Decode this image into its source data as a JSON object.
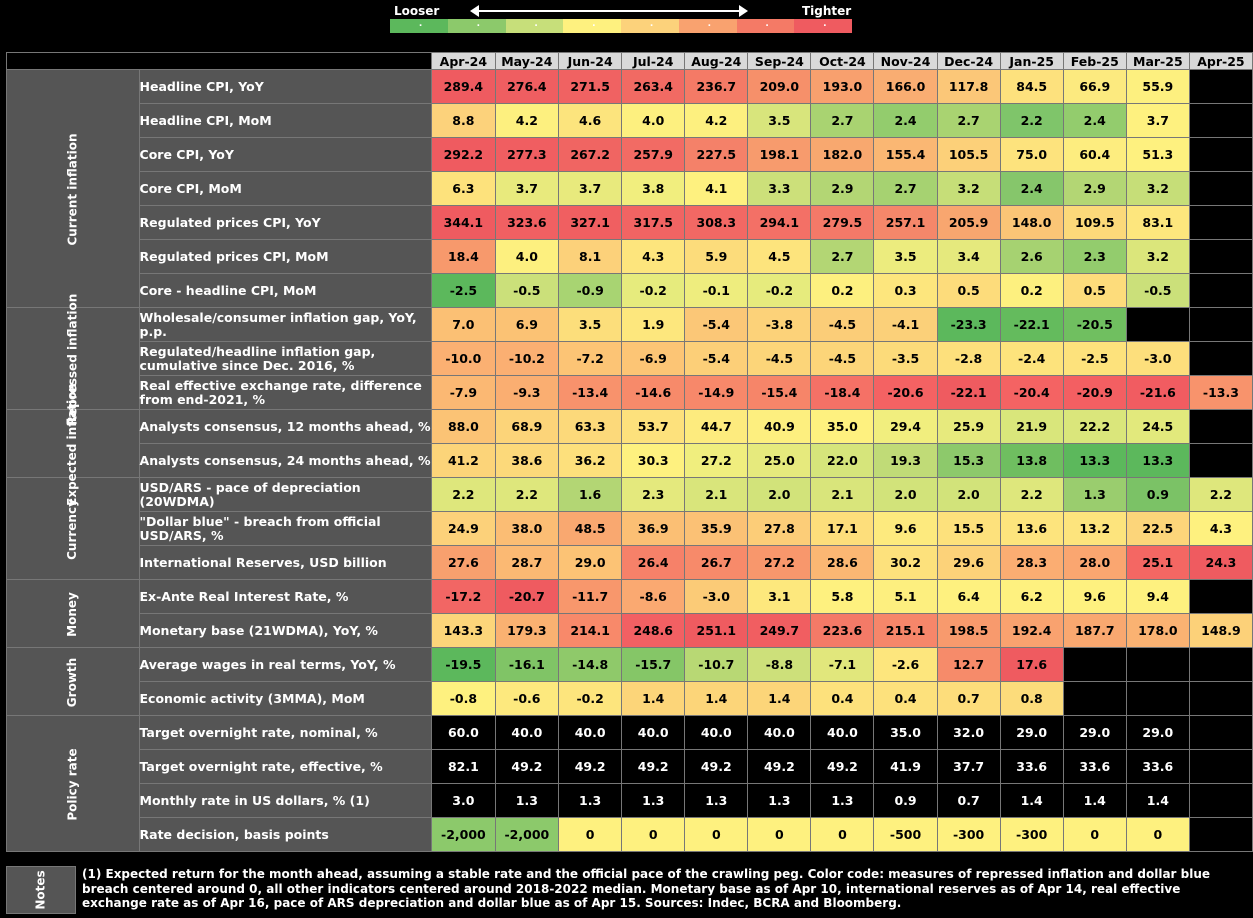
{
  "legend": {
    "left_label": "Looser",
    "right_label": "Tighter",
    "colors": [
      "#5cb85c",
      "#8cc96b",
      "#c7df7a",
      "#fef17f",
      "#fcd27b",
      "#f9a26f",
      "#f47a66",
      "#ef5b60"
    ]
  },
  "months": [
    "Apr-24",
    "May-24",
    "Jun-24",
    "Jul-24",
    "Aug-24",
    "Sep-24",
    "Oct-24",
    "Nov-24",
    "Dec-24",
    "Jan-25",
    "Feb-25",
    "Mar-25",
    "Apr-25"
  ],
  "groups": [
    {
      "name": "Current inflation",
      "rows": [
        {
          "label": "Headline CPI, YoY",
          "values": [
            "289.4",
            "276.4",
            "271.5",
            "263.4",
            "236.7",
            "209.0",
            "193.0",
            "166.0",
            "117.8",
            "84.5",
            "66.9",
            "55.9",
            ""
          ],
          "colors": [
            "#ef5b60",
            "#ef5e61",
            "#f06262",
            "#f16a63",
            "#f47a66",
            "#f6906a",
            "#f8a06e",
            "#f9ad72",
            "#fbc778",
            "#fde17d",
            "#fcea7f",
            "#fdf07f",
            "#000000"
          ]
        },
        {
          "label": "Headline CPI, MoM",
          "values": [
            "8.8",
            "4.2",
            "4.6",
            "4.0",
            "4.2",
            "3.5",
            "2.7",
            "2.4",
            "2.7",
            "2.2",
            "2.4",
            "3.7",
            ""
          ],
          "colors": [
            "#fcd27b",
            "#fdf07f",
            "#fce47d",
            "#fdf07f",
            "#fdf07f",
            "#d8e57c",
            "#a9d371",
            "#93cc6d",
            "#a9d371",
            "#7fc56a",
            "#93cc6d",
            "#fef17f",
            "#000000"
          ]
        },
        {
          "label": "Core CPI, YoY",
          "values": [
            "292.2",
            "277.3",
            "267.2",
            "257.9",
            "227.5",
            "198.1",
            "182.0",
            "155.4",
            "105.5",
            "75.0",
            "60.4",
            "51.3",
            ""
          ],
          "colors": [
            "#ef5b60",
            "#f05e61",
            "#f06562",
            "#f26b64",
            "#f48169",
            "#f79b6d",
            "#f8a86f",
            "#fab773",
            "#fcd079",
            "#fde37d",
            "#fded7f",
            "#fef17f",
            "#000000"
          ]
        },
        {
          "label": "Core CPI, MoM",
          "values": [
            "6.3",
            "3.7",
            "3.7",
            "3.8",
            "4.1",
            "3.3",
            "2.9",
            "2.7",
            "3.2",
            "2.4",
            "2.9",
            "3.2",
            ""
          ],
          "colors": [
            "#fde27c",
            "#e8ea7d",
            "#e8ea7d",
            "#f1ee7e",
            "#fef17f",
            "#cce07a",
            "#b3d674",
            "#a6d271",
            "#c6de78",
            "#86c66b",
            "#b3d674",
            "#c6de78",
            "#000000"
          ]
        },
        {
          "label": "Regulated prices CPI, YoY",
          "values": [
            "344.1",
            "323.6",
            "327.1",
            "317.5",
            "308.3",
            "294.1",
            "279.5",
            "257.1",
            "205.9",
            "148.0",
            "109.5",
            "83.1",
            ""
          ],
          "colors": [
            "#ef5b60",
            "#f06062",
            "#f05f61",
            "#f16463",
            "#f26864",
            "#f37066",
            "#f47968",
            "#f5876a",
            "#f8a66f",
            "#fbc576",
            "#fcd97a",
            "#fde67d",
            "#000000"
          ]
        },
        {
          "label": "Regulated prices CPI, MoM",
          "values": [
            "18.4",
            "4.0",
            "8.1",
            "4.3",
            "5.9",
            "4.5",
            "2.7",
            "3.5",
            "3.4",
            "2.6",
            "2.3",
            "3.2",
            ""
          ],
          "colors": [
            "#f7996c",
            "#fdf07f",
            "#fcd17a",
            "#fde57d",
            "#fcdc7b",
            "#fde47d",
            "#b3d674",
            "#ecec7e",
            "#e5e97d",
            "#a6d271",
            "#93cc6d",
            "#dbe67b",
            "#000000"
          ]
        },
        {
          "label": "Core - headline CPI, MoM",
          "values": [
            "-2.5",
            "-0.5",
            "-0.9",
            "-0.2",
            "-0.1",
            "-0.2",
            "0.2",
            "0.3",
            "0.5",
            "0.2",
            "0.5",
            "-0.5",
            ""
          ],
          "colors": [
            "#5cb85c",
            "#cbe07a",
            "#a8d472",
            "#e6eb7d",
            "#eeed7e",
            "#e6eb7d",
            "#fdf07f",
            "#fde67d",
            "#fddc7b",
            "#fdf07f",
            "#fddc7b",
            "#cbe07a",
            "#000000"
          ]
        }
      ]
    },
    {
      "name": "Repressed inflation",
      "rows": [
        {
          "label": "Wholesale/consumer inflation gap, YoY, p.p.",
          "values": [
            "7.0",
            "6.9",
            "3.5",
            "1.9",
            "-5.4",
            "-3.8",
            "-4.5",
            "-4.1",
            "-23.3",
            "-22.1",
            "-20.5",
            "",
            ""
          ],
          "colors": [
            "#fbc074",
            "#fbc274",
            "#fcde7b",
            "#fde77d",
            "#fbc777",
            "#fcd279",
            "#fbcd78",
            "#fbd079",
            "#5cb85c",
            "#64bb5d",
            "#70bf60",
            "#000000",
            "#000000"
          ]
        },
        {
          "label": "Regulated/headline inflation gap, cumulative since Dec. 2016, %",
          "values": [
            "-10.0",
            "-10.2",
            "-7.2",
            "-6.9",
            "-5.4",
            "-4.5",
            "-4.5",
            "-3.5",
            "-2.8",
            "-2.4",
            "-2.5",
            "-3.0",
            ""
          ],
          "colors": [
            "#fbb072",
            "#fbaf72",
            "#fcc475",
            "#fcc575",
            "#fccf78",
            "#fcd579",
            "#fcd579",
            "#fcdb7a",
            "#fde07c",
            "#fde37c",
            "#fde27c",
            "#fddf7c",
            "#000000"
          ]
        },
        {
          "label": "Real effective exchange rate, difference from end-2021, %",
          "values": [
            "-7.9",
            "-9.3",
            "-13.4",
            "-14.6",
            "-14.9",
            "-15.4",
            "-18.4",
            "-20.6",
            "-22.1",
            "-20.4",
            "-20.9",
            "-21.6",
            "-13.3"
          ],
          "colors": [
            "#fbb873",
            "#faae71",
            "#f8926c",
            "#f78a6a",
            "#f7886a",
            "#f68569",
            "#f57166",
            "#f46263",
            "#ef5b60",
            "#f46363",
            "#f35f62",
            "#f15c61",
            "#f8936c"
          ]
        }
      ]
    },
    {
      "name": "Expected inflation",
      "rows": [
        {
          "label": "Analysts consensus, 12 months ahead, %",
          "values": [
            "88.0",
            "68.9",
            "63.3",
            "53.7",
            "44.7",
            "40.9",
            "35.0",
            "29.4",
            "25.9",
            "21.9",
            "22.2",
            "24.5",
            ""
          ],
          "colors": [
            "#fbc375",
            "#fcd479",
            "#fcd97a",
            "#fde17c",
            "#fdeb7e",
            "#fdef7f",
            "#fef17f",
            "#f1ee7e",
            "#e7ea7d",
            "#d9e67b",
            "#dae67b",
            "#e2e97c",
            "#000000"
          ]
        },
        {
          "label": "Analysts consensus, 24 months ahead, %",
          "values": [
            "41.2",
            "38.6",
            "36.2",
            "30.3",
            "27.2",
            "25.0",
            "22.0",
            "19.3",
            "15.3",
            "13.8",
            "13.3",
            "13.3",
            ""
          ],
          "colors": [
            "#fcd479",
            "#fcd97a",
            "#fde07c",
            "#fef17f",
            "#f0ee7e",
            "#e6ea7d",
            "#d6e57b",
            "#c0db77",
            "#8dc96b",
            "#6fbe60",
            "#5cb85c",
            "#5cb85c",
            "#000000"
          ]
        }
      ]
    },
    {
      "name": "Currency",
      "rows": [
        {
          "label": "USD/ARS - pace of depreciation (20WDMA)",
          "values": [
            "2.2",
            "2.2",
            "1.6",
            "2.3",
            "2.1",
            "2.0",
            "2.1",
            "2.0",
            "2.0",
            "2.2",
            "1.3",
            "0.9",
            "2.2"
          ],
          "colors": [
            "#dee77c",
            "#dee77c",
            "#b3d674",
            "#e4e97d",
            "#d9e57b",
            "#d2e37a",
            "#d9e57b",
            "#d2e37a",
            "#d2e37a",
            "#dee77c",
            "#9acd6e",
            "#7bc266",
            "#dee77c"
          ]
        },
        {
          "label": "\"Dollar blue\" - breach from official USD/ARS, %",
          "values": [
            "24.9",
            "38.0",
            "48.5",
            "36.9",
            "35.9",
            "27.8",
            "17.1",
            "9.6",
            "15.5",
            "13.6",
            "13.2",
            "22.5",
            "4.3"
          ],
          "colors": [
            "#fcd17a",
            "#fbbd74",
            "#f9a870",
            "#fbbf74",
            "#fbc175",
            "#fccd78",
            "#fdde7b",
            "#fdea7e",
            "#fde17c",
            "#fde47d",
            "#fde47d",
            "#fcd57a",
            "#fef17f"
          ]
        },
        {
          "label": "International Reserves, USD billion",
          "values": [
            "27.6",
            "28.7",
            "29.0",
            "26.4",
            "26.7",
            "27.2",
            "28.6",
            "30.2",
            "29.6",
            "28.3",
            "28.0",
            "25.1",
            "24.3"
          ],
          "colors": [
            "#f8a06e",
            "#fbb973",
            "#fcc375",
            "#f68169",
            "#f78a6a",
            "#f8976c",
            "#fbb773",
            "#fde17c",
            "#fcd279",
            "#fbad72",
            "#faa670",
            "#f46763",
            "#ef5b60"
          ]
        }
      ]
    },
    {
      "name": "Money",
      "rows": [
        {
          "label": "Ex-Ante Real Interest Rate, %",
          "values": [
            "-17.2",
            "-20.7",
            "-11.7",
            "-8.6",
            "-3.0",
            "3.1",
            "5.8",
            "5.1",
            "6.4",
            "6.2",
            "9.6",
            "9.4",
            ""
          ],
          "colors": [
            "#f26664",
            "#ef5b60",
            "#f8976c",
            "#faa971",
            "#fbcb77",
            "#fde87d",
            "#fef17f",
            "#fdef7f",
            "#fef17f",
            "#fef17f",
            "#fef17f",
            "#fef17f",
            "#000000"
          ]
        },
        {
          "label": "Monetary base (21WDMA), YoY, %",
          "values": [
            "143.3",
            "179.3",
            "214.1",
            "248.6",
            "251.1",
            "249.7",
            "223.6",
            "215.1",
            "198.5",
            "192.4",
            "187.7",
            "178.0",
            "148.9"
          ],
          "colors": [
            "#fcd57a",
            "#fab171",
            "#f8896a",
            "#f26063",
            "#ef5b60",
            "#f15e61",
            "#f47a67",
            "#f6866a",
            "#f89a6d",
            "#f9a26f",
            "#f9a870",
            "#fab272",
            "#fcd179"
          ]
        }
      ]
    },
    {
      "name": "Growth",
      "rows": [
        {
          "label": "Average wages in real terms, YoY, %",
          "values": [
            "-19.5",
            "-16.1",
            "-14.8",
            "-15.7",
            "-10.7",
            "-8.8",
            "-7.1",
            "-2.6",
            "12.7",
            "17.6",
            "",
            "",
            ""
          ],
          "colors": [
            "#5cb85c",
            "#80c466",
            "#8fc96a",
            "#85c667",
            "#b8d874",
            "#cde07a",
            "#e1e77c",
            "#fde67d",
            "#f68b6a",
            "#ef5b60",
            "#000000",
            "#000000",
            "#000000"
          ]
        },
        {
          "label": "Economic activity (3MMA), MoM",
          "values": [
            "-0.8",
            "-0.6",
            "-0.2",
            "1.4",
            "1.4",
            "1.4",
            "0.4",
            "0.4",
            "0.7",
            "0.8",
            "",
            "",
            ""
          ],
          "colors": [
            "#fef17f",
            "#fde97e",
            "#fde57d",
            "#fcd579",
            "#fcd579",
            "#fcd579",
            "#fde17c",
            "#fde17c",
            "#fddd7b",
            "#fcdc7b",
            "#000000",
            "#000000",
            "#000000"
          ]
        }
      ]
    },
    {
      "name": "Policy rate",
      "rows": [
        {
          "label": "Target overnight rate, nominal, %",
          "values": [
            "60.0",
            "40.0",
            "40.0",
            "40.0",
            "40.0",
            "40.0",
            "40.0",
            "35.0",
            "32.0",
            "29.0",
            "29.0",
            "29.0",
            ""
          ],
          "colors": [
            "#000000",
            "#000000",
            "#000000",
            "#000000",
            "#000000",
            "#000000",
            "#000000",
            "#000000",
            "#000000",
            "#000000",
            "#000000",
            "#000000",
            "#000000"
          ]
        },
        {
          "label": "Target overnight rate, effective, %",
          "values": [
            "82.1",
            "49.2",
            "49.2",
            "49.2",
            "49.2",
            "49.2",
            "49.2",
            "41.9",
            "37.7",
            "33.6",
            "33.6",
            "33.6",
            ""
          ],
          "colors": [
            "#000000",
            "#000000",
            "#000000",
            "#000000",
            "#000000",
            "#000000",
            "#000000",
            "#000000",
            "#000000",
            "#000000",
            "#000000",
            "#000000",
            "#000000"
          ]
        },
        {
          "label": "Monthly rate in US dollars, % (1)",
          "values": [
            "3.0",
            "1.3",
            "1.3",
            "1.3",
            "1.3",
            "1.3",
            "1.3",
            "0.9",
            "0.7",
            "1.4",
            "1.4",
            "1.4",
            ""
          ],
          "colors": [
            "#000000",
            "#000000",
            "#000000",
            "#000000",
            "#000000",
            "#000000",
            "#000000",
            "#000000",
            "#000000",
            "#000000",
            "#000000",
            "#000000",
            "#000000"
          ]
        },
        {
          "label": "Rate decision, basis points",
          "values": [
            "-2,000",
            "-2,000",
            "0",
            "0",
            "0",
            "0",
            "0",
            "-500",
            "-300",
            "-300",
            "0",
            "0",
            ""
          ],
          "colors": [
            "#8cc96b",
            "#8cc96b",
            "#fef17f",
            "#fef17f",
            "#fef17f",
            "#fef17f",
            "#fef17f",
            "#fef17f",
            "#fef17f",
            "#fef17f",
            "#fef17f",
            "#fef17f",
            "#000000"
          ]
        }
      ]
    }
  ],
  "notes": {
    "title": "Notes",
    "text": "(1) Expected return for the month ahead, assuming a stable rate and the official pace of the crawling peg. Color code: measures of repressed inflation and dollar blue breach centered around 0, all other indicators centered around 2018-2022 median. Monetary base as of Apr 10, international reserves as of Apr 14, real effective exchange rate as of Apr 16, pace of ARS depreciation and dollar blue as of Apr 15. Sources: Indec, BCRA and Bloomberg."
  }
}
